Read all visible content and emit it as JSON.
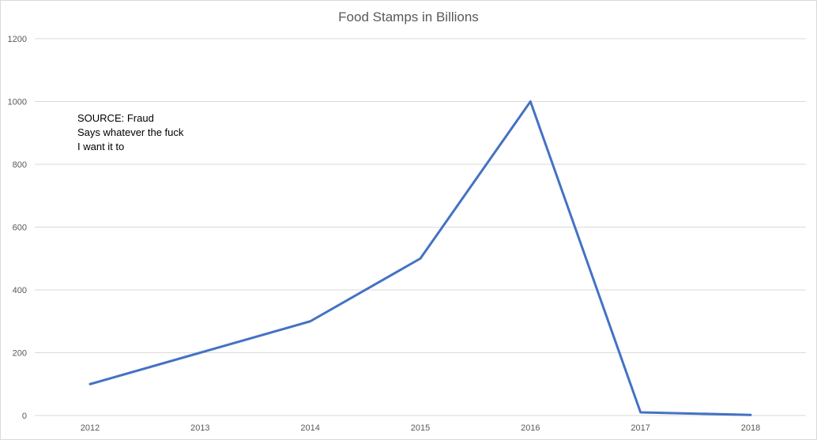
{
  "chart_data": {
    "type": "line",
    "title": "Food Stamps in Billions",
    "xlabel": "",
    "ylabel": "",
    "categories": [
      "2012",
      "2013",
      "2014",
      "2015",
      "2016",
      "2017",
      "2018"
    ],
    "series": [
      {
        "values": [
          100,
          200,
          300,
          500,
          1000,
          10,
          2
        ]
      }
    ],
    "ylim": [
      0,
      1200
    ],
    "yticks": [
      0,
      200,
      400,
      600,
      800,
      1000,
      1200
    ],
    "grid": true,
    "legend": "none",
    "annotation": [
      "SOURCE: Fraud",
      "Says whatever the fuck",
      "I want it to"
    ],
    "colors": {
      "line": "#4472c4",
      "grid": "#d9d9d9",
      "text": "#595959"
    }
  }
}
